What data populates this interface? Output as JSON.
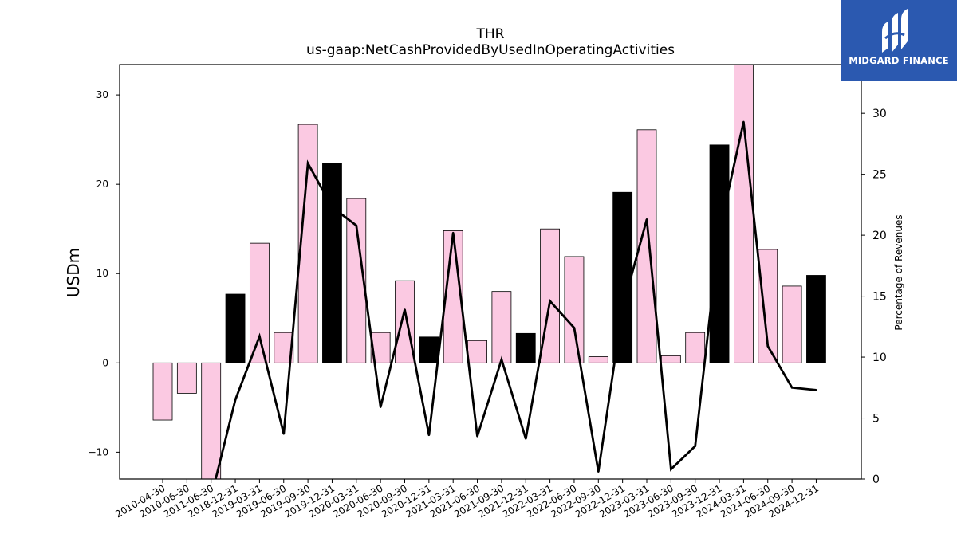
{
  "brand": {
    "name": "MIDGARD FINANCE",
    "color": "#2b59b0"
  },
  "chart_data": {
    "type": "bar",
    "title": "THR",
    "subtitle": "us-gaap:NetCashProvidedByUsedInOperatingActivities",
    "ylabel": "USDm",
    "y2label": "Percentage of Revenues",
    "ylim": [
      -13.0,
      33.4
    ],
    "y2lim": [
      0,
      34
    ],
    "yticks": [
      -10,
      0,
      10,
      20,
      30
    ],
    "y2ticks": [
      0,
      5,
      10,
      15,
      20,
      25,
      30
    ],
    "categories": [
      "2010-04-30",
      "2010-06-30",
      "2011-06-30",
      "2018-12-31",
      "2019-03-31",
      "2019-06-30",
      "2019-09-30",
      "2019-12-31",
      "2020-03-31",
      "2020-06-30",
      "2020-09-30",
      "2020-12-31",
      "2021-03-31",
      "2021-06-30",
      "2021-09-30",
      "2021-12-31",
      "2022-03-31",
      "2022-06-30",
      "2022-09-30",
      "2022-12-31",
      "2023-03-31",
      "2023-06-30",
      "2023-09-30",
      "2023-12-31",
      "2024-03-31",
      "2024-06-30",
      "2024-09-30",
      "2024-12-31"
    ],
    "series": [
      {
        "type": "bar",
        "values": [
          -6.4,
          -3.4,
          -13.5,
          7.7,
          13.4,
          3.4,
          26.7,
          22.3,
          18.4,
          3.4,
          9.2,
          2.9,
          14.8,
          2.5,
          8.0,
          3.3,
          15.0,
          11.9,
          0.7,
          19.1,
          26.1,
          0.8,
          3.4,
          24.4,
          34.5,
          12.7,
          8.6,
          9.8
        ],
        "fourth_quarter": [
          false,
          false,
          false,
          true,
          false,
          false,
          false,
          true,
          false,
          false,
          false,
          true,
          false,
          false,
          false,
          true,
          false,
          false,
          false,
          true,
          false,
          false,
          false,
          true,
          false,
          false,
          false,
          true
        ],
        "colors": {
          "quarter": "#fbc9e2",
          "fourth_quarter": "#000000"
        }
      },
      {
        "type": "line",
        "axis": "right",
        "color": "#000000",
        "values": [
          null,
          null,
          -1.5,
          6.5,
          11.7,
          3.7,
          25.9,
          22.3,
          20.8,
          5.9,
          13.9,
          3.6,
          20.2,
          3.5,
          9.8,
          3.3,
          14.6,
          12.4,
          0.6,
          14.0,
          21.3,
          0.8,
          2.7,
          20.3,
          29.3,
          10.9,
          7.5,
          7.3
        ]
      }
    ]
  }
}
